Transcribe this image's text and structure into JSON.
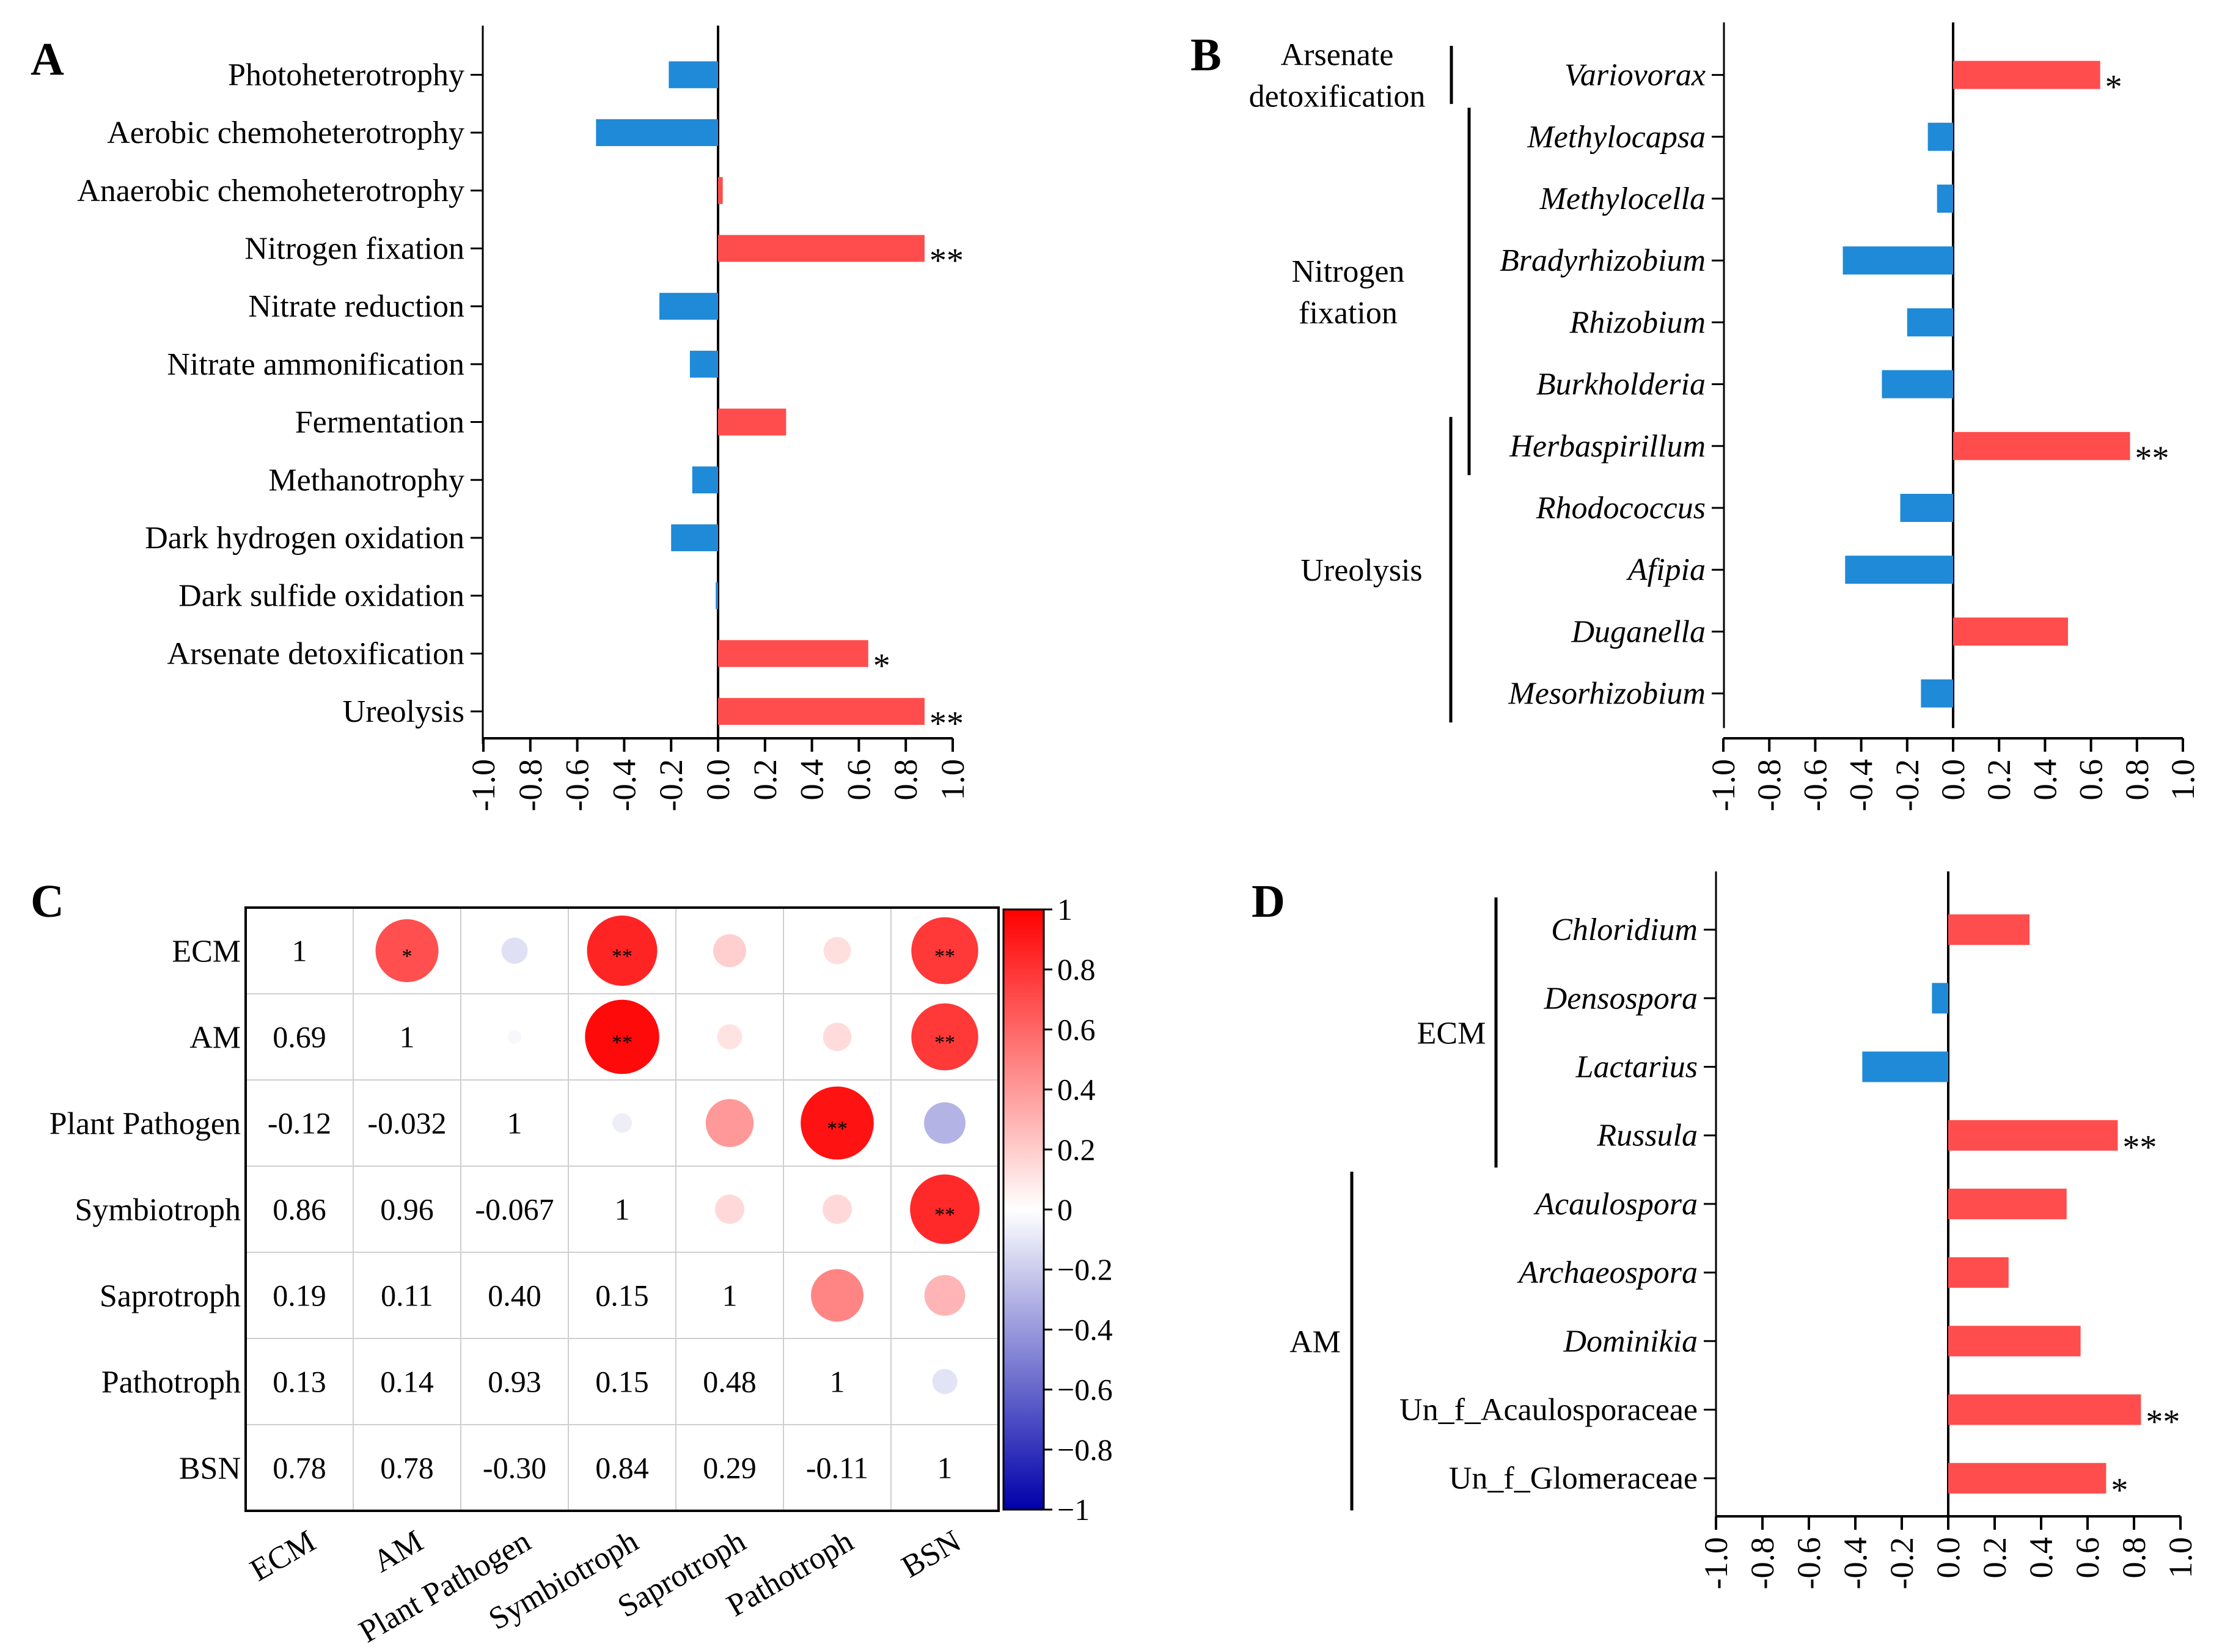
{
  "panels": {
    "A": "A",
    "B": "B",
    "C": "C",
    "D": "D"
  },
  "colors": {
    "positive": "#ff4d4d",
    "negative": "#1f8ad7",
    "axis": "#000000",
    "grid": "#cfcfcf"
  },
  "chart_data": [
    {
      "id": "A",
      "type": "bar",
      "orientation": "horizontal",
      "categories": [
        "Photoheterotrophy",
        "Aerobic chemoheterotrophy",
        "Anaerobic chemoheterotrophy",
        "Nitrogen fixation",
        "Nitrate reduction",
        "Nitrate ammonification",
        "Fermentation",
        "Methanotrophy",
        "Dark hydrogen oxidation",
        "Dark sulfide oxidation",
        "Arsenate detoxification",
        "Ureolysis"
      ],
      "values": [
        -0.21,
        -0.52,
        0.02,
        0.88,
        -0.25,
        -0.12,
        0.29,
        -0.11,
        -0.2,
        -0.01,
        0.64,
        0.88
      ],
      "significance": [
        "",
        "",
        "",
        "**",
        "",
        "",
        "",
        "",
        "",
        "",
        "*",
        "**"
      ],
      "xlim": [
        -1.0,
        1.0
      ],
      "ticks": [
        "-1.0",
        "-0.8",
        "-0.6",
        "-0.4",
        "-0.2",
        "0.0",
        "0.2",
        "0.4",
        "0.6",
        "0.8",
        "1.0"
      ],
      "italic_labels": false,
      "groups": []
    },
    {
      "id": "B",
      "type": "bar",
      "orientation": "horizontal",
      "categories": [
        "Variovorax",
        "Methylocapsa",
        "Methylocella",
        "Bradyrhizobium",
        "Rhizobium",
        "Burkholderia",
        "Herbaspirillum",
        "Rhodococcus",
        "Afipia",
        "Duganella",
        "Mesorhizobium"
      ],
      "values": [
        0.64,
        -0.11,
        -0.07,
        -0.48,
        -0.2,
        -0.31,
        0.77,
        -0.23,
        -0.47,
        0.5,
        -0.14
      ],
      "significance": [
        "*",
        "",
        "",
        "",
        "",
        "",
        "**",
        "",
        "",
        "",
        ""
      ],
      "xlim": [
        -1.0,
        1.0
      ],
      "ticks": [
        "-1.0",
        "-0.8",
        "-0.6",
        "-0.4",
        "-0.2",
        "0.0",
        "0.2",
        "0.4",
        "0.6",
        "0.8",
        "1.0"
      ],
      "italic_labels": true,
      "groups": [
        {
          "lines": [
            "Arsenate",
            "detoxification"
          ],
          "start": 0,
          "end": 0
        },
        {
          "lines": [
            "Nitrogen",
            "fixation"
          ],
          "start": 1,
          "end": 6
        },
        {
          "lines": [
            "Ureolysis"
          ],
          "start": 6,
          "end": 10
        }
      ]
    },
    {
      "id": "C",
      "type": "heatmap",
      "labels": [
        "ECM",
        "AM",
        "Plant Pathogen",
        "Symbiotroph",
        "Saprotroph",
        "Pathotroph",
        "BSN"
      ],
      "matrix": [
        [
          1,
          0.69,
          -0.12,
          0.86,
          0.19,
          0.13,
          0.78
        ],
        [
          0.69,
          1,
          -0.032,
          0.96,
          0.11,
          0.14,
          0.78
        ],
        [
          -0.12,
          -0.032,
          1,
          -0.067,
          0.4,
          0.93,
          -0.3
        ],
        [
          0.86,
          0.96,
          -0.067,
          1,
          0.15,
          0.15,
          0.84
        ],
        [
          0.19,
          0.11,
          0.4,
          0.15,
          1,
          0.48,
          0.29
        ],
        [
          0.13,
          0.14,
          0.93,
          0.15,
          0.48,
          1,
          -0.11
        ],
        [
          0.78,
          0.78,
          -0.3,
          0.84,
          0.29,
          -0.11,
          1
        ]
      ],
      "lower_text": [
        [
          "1",
          "",
          "",
          "",
          "",
          "",
          ""
        ],
        [
          "0.69",
          "1",
          "",
          "",
          "",
          "",
          ""
        ],
        [
          "-0.12",
          "-0.032",
          "1",
          "",
          "",
          "",
          ""
        ],
        [
          "0.86",
          "0.96",
          "-0.067",
          "1",
          "",
          "",
          ""
        ],
        [
          "0.19",
          "0.11",
          "0.40",
          "0.15",
          "1",
          "",
          ""
        ],
        [
          "0.13",
          "0.14",
          "0.93",
          "0.15",
          "0.48",
          "1",
          ""
        ],
        [
          "0.78",
          "0.78",
          "-0.30",
          "0.84",
          "0.29",
          "-0.11",
          "1"
        ]
      ],
      "upper_sig": [
        [
          "",
          "*",
          "",
          "**",
          "",
          "",
          "**"
        ],
        [
          "",
          "",
          "",
          "**",
          "",
          "",
          "**"
        ],
        [
          "",
          "",
          "",
          "",
          "",
          "**",
          ""
        ],
        [
          "",
          "",
          "",
          "",
          "",
          "",
          "**"
        ],
        [
          "",
          "",
          "",
          "",
          "",
          "",
          ""
        ],
        [
          "",
          "",
          "",
          "",
          "",
          "",
          ""
        ],
        [
          "",
          "",
          "",
          "",
          "",
          "",
          ""
        ]
      ],
      "colorbar_ticks": [
        "1",
        "0.8",
        "0.6",
        "0.4",
        "0.2",
        "0",
        "−0.2",
        "−0.4",
        "−0.6",
        "−0.8",
        "−1"
      ],
      "range": [
        -1,
        1
      ]
    },
    {
      "id": "D",
      "type": "bar",
      "orientation": "horizontal",
      "categories": [
        "Chloridium",
        "Densospora",
        "Lactarius",
        "Russula",
        "Acaulospora",
        "Archaeospora",
        "Dominikia",
        "Un_f_Acaulosporaceae",
        "Un_f_Glomeraceae"
      ],
      "values": [
        0.35,
        -0.07,
        -0.37,
        0.73,
        0.51,
        0.26,
        0.57,
        0.83,
        0.68
      ],
      "significance": [
        "",
        "",
        "",
        "**",
        "",
        "",
        "",
        "**",
        "*"
      ],
      "italic": [
        true,
        true,
        true,
        true,
        true,
        true,
        true,
        false,
        false
      ],
      "xlim": [
        -1.0,
        1.0
      ],
      "ticks": [
        "-1.0",
        "-0.8",
        "-0.6",
        "-0.4",
        "-0.2",
        "0.0",
        "0.2",
        "0.4",
        "0.6",
        "0.8",
        "1.0"
      ],
      "italic_labels": true,
      "groups": [
        {
          "lines": [
            "ECM"
          ],
          "start": 0,
          "end": 3
        },
        {
          "lines": [
            "AM"
          ],
          "start": 4,
          "end": 8
        }
      ]
    }
  ]
}
